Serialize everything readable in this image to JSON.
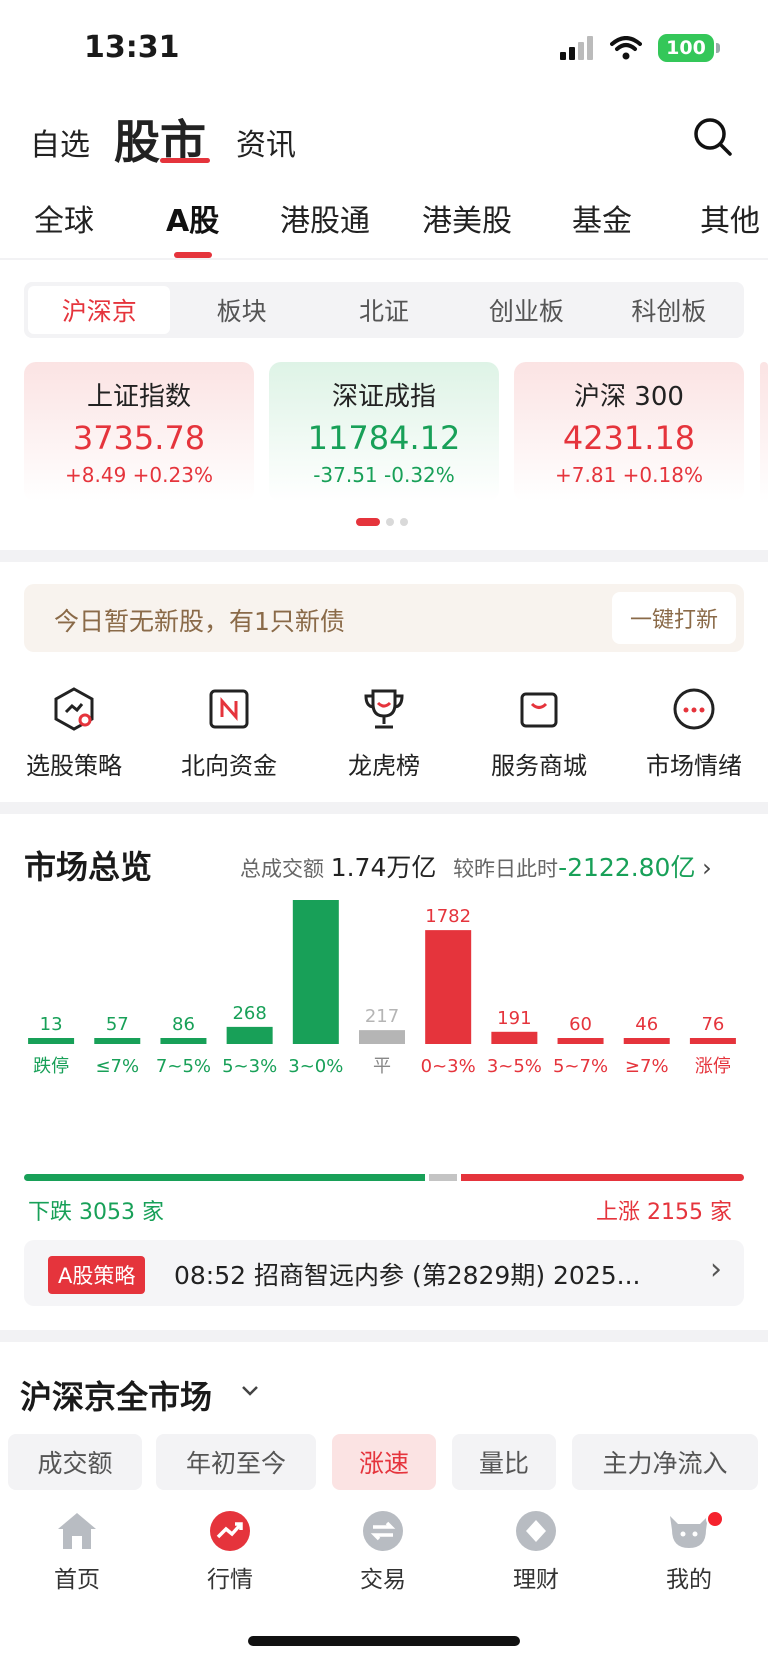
{
  "status": {
    "time": "13:31",
    "battery": "100"
  },
  "top_tabs": [
    "自选",
    "股市",
    "资讯"
  ],
  "market_tabs": [
    "全球",
    "A股",
    "港股通",
    "港美股",
    "基金",
    "其他"
  ],
  "segments": [
    "沪深京",
    "板块",
    "北证",
    "创业板",
    "科创板"
  ],
  "indices": [
    {
      "name": "上证指数",
      "value": "3735.78",
      "change": "+8.49",
      "pct": "+0.23%"
    },
    {
      "name": "深证成指",
      "value": "11784.12",
      "change": "-37.51",
      "pct": "-0.32%"
    },
    {
      "name": "沪深 300",
      "value": "4231.18",
      "change": "+7.81",
      "pct": "+0.18%"
    }
  ],
  "notice": {
    "text": "今日暂无新股，有1只新债",
    "button": "一键打新"
  },
  "quick_actions": [
    "选股策略",
    "北向资金",
    "龙虎榜",
    "服务商城",
    "市场情绪"
  ],
  "overview": {
    "title": "市场总览",
    "turnover_label": "总成交额",
    "turnover_value": "1.74",
    "turnover_unit": "万亿",
    "compare_label": "较昨日此时",
    "compare_value": "-2122.80亿"
  },
  "chart_data": {
    "type": "bar",
    "categories": [
      "跌停",
      "≤7%",
      "7~5%",
      "5~3%",
      "3~0%",
      "平",
      "0~3%",
      "3~5%",
      "5~7%",
      "≥7%",
      "涨停"
    ],
    "values": [
      13,
      57,
      86,
      268,
      2629,
      217,
      1782,
      191,
      60,
      46,
      76
    ],
    "colors": [
      "#18a058",
      "#18a058",
      "#18a058",
      "#18a058",
      "#18a058",
      "#b5b5b5",
      "#e5343c",
      "#e5343c",
      "#e5343c",
      "#e5343c",
      "#e5343c"
    ],
    "ylim": [
      0,
      2629
    ]
  },
  "breadth": {
    "down_label": "下跌 3053 家",
    "up_label": "上涨 2155 家",
    "down": 3053,
    "flat": 217,
    "up": 2155
  },
  "strategy": {
    "badge": "A股策略",
    "text": "08:52 招商智远内参 (第2829期) 2025..."
  },
  "market_section": {
    "title": "沪深京全市场"
  },
  "chips": [
    "成交额",
    "年初至今",
    "涨速",
    "量比",
    "主力净流入"
  ],
  "nav": [
    "首页",
    "行情",
    "交易",
    "理财",
    "我的"
  ]
}
